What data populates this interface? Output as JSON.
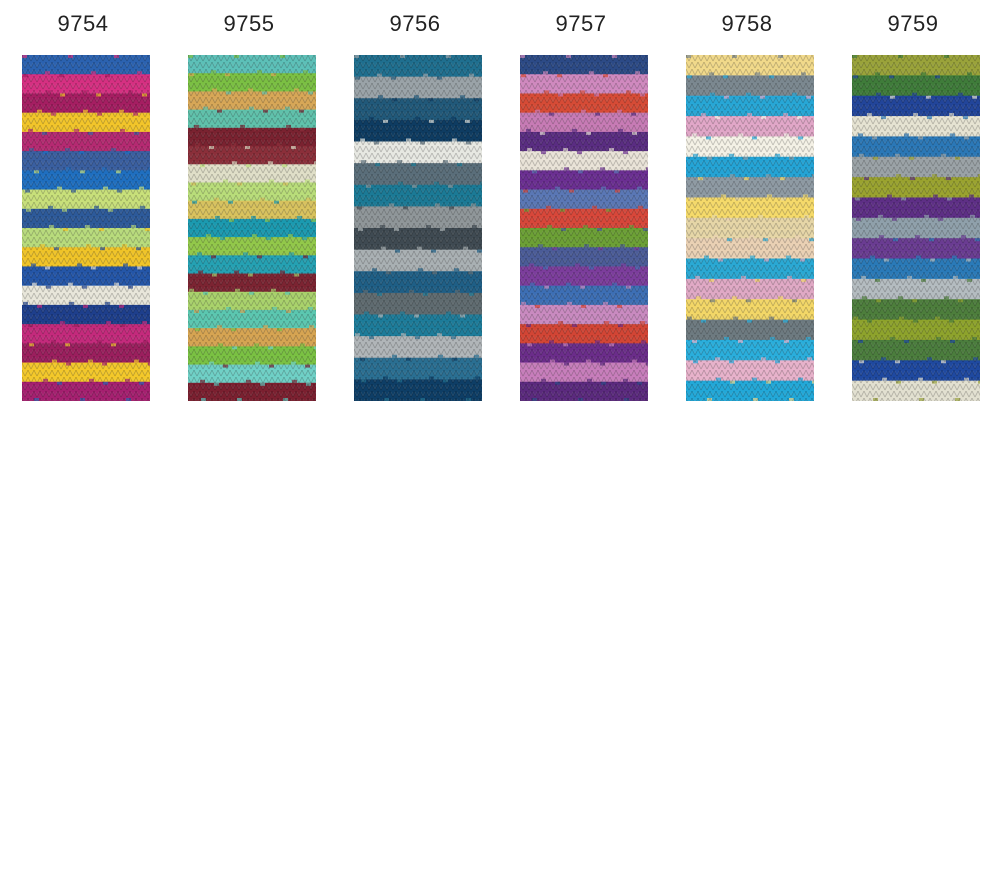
{
  "swatches": [
    {
      "code": "9754",
      "colors": [
        "#2b62b0",
        "#d63082",
        "#a51e62",
        "#f2c52a",
        "#b52a72",
        "#3a5fa0",
        "#1f6fc0",
        "#c8e07a",
        "#2d5a9a",
        "#b8db7c",
        "#f0c428",
        "#2456a8",
        "#e8e6da",
        "#1e3f8c",
        "#c42a7c",
        "#9b1f5e",
        "#f3c82a",
        "#a52070"
      ]
    },
    {
      "code": "9755",
      "colors": [
        "#5cc0b8",
        "#7bc043",
        "#d7a757",
        "#5fc1ab",
        "#7a2230",
        "#8b2f3a",
        "#e0dfc8",
        "#b9dd7a",
        "#d8c25e",
        "#1b9ab0",
        "#92c84a",
        "#25a1b3",
        "#7c2432",
        "#a9d26b",
        "#5bc7b0",
        "#d6a452",
        "#7ac143",
        "#6fd0c6",
        "#7b2030"
      ]
    },
    {
      "code": "9756",
      "colors": [
        "#1f6f8f",
        "#9aa3a8",
        "#21597a",
        "#0e3c62",
        "#e7e8e2",
        "#5a6e7a",
        "#1b7a96",
        "#8f9699",
        "#3f4a52",
        "#a9b0b3",
        "#1f5f86",
        "#5f6b70",
        "#1d7c9a",
        "#b0b5b8",
        "#2a6f92",
        "#0e3e66"
      ]
    },
    {
      "code": "9757",
      "colors": [
        "#2c4a86",
        "#d089bf",
        "#d64b36",
        "#c77bb5",
        "#5a2d82",
        "#e9e3d8",
        "#6b2f92",
        "#5a77b5",
        "#d8473a",
        "#6ca035",
        "#4b5c98",
        "#7c3d9c",
        "#3d6fb5",
        "#c98ac0",
        "#d24535",
        "#6b2d8a",
        "#c77dbb",
        "#5b2a7e"
      ]
    },
    {
      "code": "9758",
      "colors": [
        "#f1d98a",
        "#7b8890",
        "#27a7d6",
        "#e1a7c8",
        "#f4f1e6",
        "#24a4d6",
        "#8e9aa3",
        "#f5da6a",
        "#e6d6a7",
        "#ead1b4",
        "#2aa9d4",
        "#e0a9c5",
        "#f3d767",
        "#6d7a80",
        "#2aaedc",
        "#e7b2cb",
        "#22a8d8"
      ]
    },
    {
      "code": "9759",
      "colors": [
        "#9aa33a",
        "#3f7c3a",
        "#22459a",
        "#e6e3d2",
        "#2b78b7",
        "#9aa2a6",
        "#9aa32f",
        "#5e2f86",
        "#8fa0ab",
        "#6a3c92",
        "#2a7ab8",
        "#b4bcc0",
        "#4d7e3c",
        "#8ea32c",
        "#4b7d3d",
        "#1f49a0",
        "#e2e0d0"
      ]
    }
  ]
}
